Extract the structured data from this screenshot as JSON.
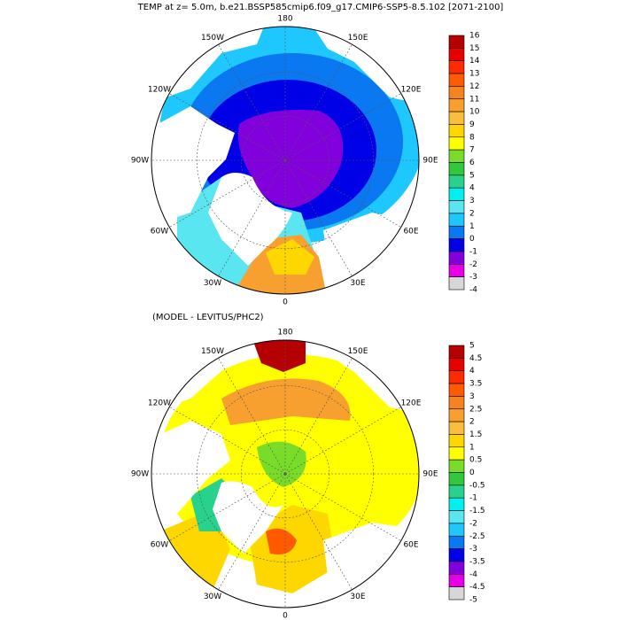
{
  "title": "TEMP at z=   5.0m, b.e21.BSSP585cmip6.f09_g17.CMIP6-SSP5-8.5.102 [2071-2100]",
  "panels": [
    {
      "lon_ticks": [
        180,
        {
          "value": 150,
          "label": "150E"
        },
        {
          "value": 120,
          "label": "120E"
        },
        {
          "value": 90,
          "label": "90E"
        },
        {
          "value": 60,
          "label": "60E"
        },
        {
          "value": 30,
          "label": "30E"
        },
        0,
        {
          "value": -30,
          "label": "30W"
        },
        {
          "value": -60,
          "label": "60W"
        },
        {
          "value": -90,
          "label": "90W"
        },
        {
          "value": -120,
          "label": "120W"
        },
        {
          "value": -150,
          "label": "150W"
        }
      ],
      "colorbar": {
        "levels": [
          16,
          15,
          14,
          13,
          12,
          11,
          10,
          9,
          8,
          7,
          6,
          5,
          4,
          3,
          2,
          1,
          0,
          -1,
          -2,
          -3,
          -4
        ],
        "colors": [
          "#b40000",
          "#e60000",
          "#ff2a00",
          "#ff5a00",
          "#f5841e",
          "#f7a030",
          "#fbbe3c",
          "#ffd700",
          "#ffff00",
          "#78dc28",
          "#32c83c",
          "#28d28c",
          "#00f0f0",
          "#5ae6f0",
          "#1ec8ff",
          "#0a78f0",
          "#0000e6",
          "#8200dc",
          "#e600e6",
          "#d7d7d7",
          "#787878"
        ]
      }
    },
    {
      "subtitle": "(MODEL - LEVITUS/PHC2)",
      "lon_ticks": [
        180,
        {
          "value": 150,
          "label": "150E"
        },
        {
          "value": 120,
          "label": "120E"
        },
        {
          "value": 90,
          "label": "90E"
        },
        {
          "value": 60,
          "label": "60E"
        },
        {
          "value": 30,
          "label": "30E"
        },
        0,
        {
          "value": -30,
          "label": "30W"
        },
        {
          "value": -60,
          "label": "60W"
        },
        {
          "value": -90,
          "label": "90W"
        },
        {
          "value": -120,
          "label": "120W"
        },
        {
          "value": -150,
          "label": "150W"
        }
      ],
      "colorbar": {
        "levels": [
          5,
          4.5,
          4,
          3.5,
          3,
          2.5,
          2,
          1.5,
          1,
          0.5,
          0,
          -0.5,
          -1,
          -1.5,
          -2,
          -2.5,
          -3,
          -3.5,
          -4,
          -4.5,
          -5
        ],
        "colors": [
          "#b40000",
          "#e60000",
          "#ff2a00",
          "#ff5a00",
          "#f5841e",
          "#f7a030",
          "#fbbe3c",
          "#ffd700",
          "#ffff00",
          "#78dc28",
          "#32c83c",
          "#28d28c",
          "#00f0f0",
          "#5ae6f0",
          "#1ec8ff",
          "#0a78f0",
          "#0000e6",
          "#8200dc",
          "#e600e6",
          "#d7d7d7",
          "#787878"
        ]
      }
    }
  ]
}
